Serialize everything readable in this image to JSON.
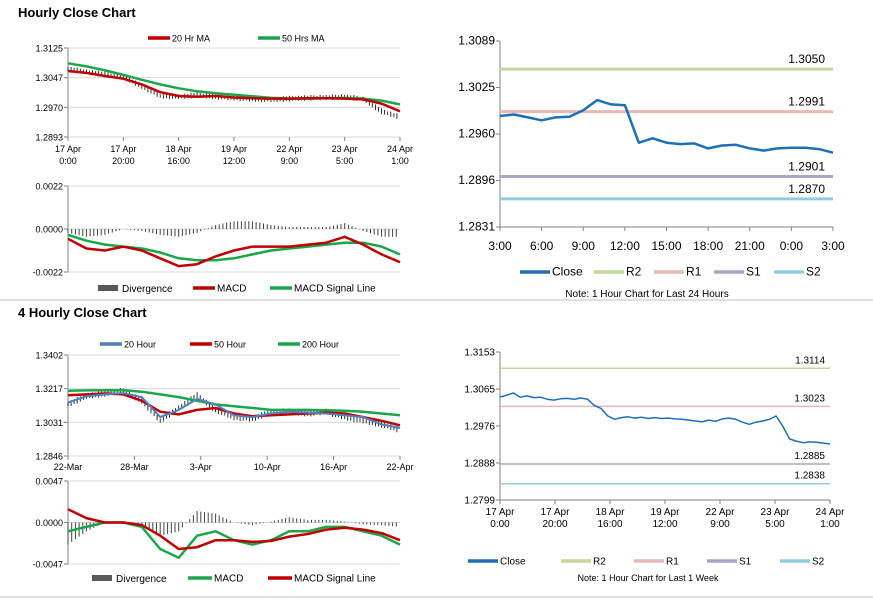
{
  "sections": {
    "hourly_title": "Hourly Close Chart",
    "four_hourly_title": "4 Hourly Close Chart"
  },
  "colors": {
    "close": "#1f6fb5",
    "red": "#c00000",
    "green": "#1aa64b",
    "blue": "#4f81bd",
    "r2": "#c4d79b",
    "r1": "#e6b9b8",
    "s1": "#b1a0c7",
    "s2": "#92cddc",
    "bars": "#404040",
    "axis": "#808080"
  },
  "chart_data": [
    {
      "id": "hourly_price",
      "type": "line",
      "legend": [
        "20 Hr MA",
        "50 Hrs MA"
      ],
      "yticks": [
        "1.3125",
        "1.3047",
        "1.2970",
        "1.2893"
      ],
      "ylim": [
        1.2893,
        1.3125
      ],
      "xticks": [
        [
          "17 Apr",
          "0:00"
        ],
        [
          "17 Apr",
          "20:00"
        ],
        [
          "18 Apr",
          "16:00"
        ],
        [
          "19 Apr",
          "12:00"
        ],
        [
          "22 Apr",
          "9:00"
        ],
        [
          "23 Apr",
          "5:00"
        ],
        [
          "24 Apr",
          "1:00"
        ]
      ],
      "series": [
        {
          "name": "20 Hr MA",
          "color": "#c00000",
          "values": [
            1.3065,
            1.306,
            1.3052,
            1.3045,
            1.303,
            1.301,
            1.3,
            1.2998,
            1.3,
            1.2996,
            1.2994,
            1.2993,
            1.2993,
            1.2994,
            1.2994,
            1.2993,
            1.2991,
            1.298,
            1.296
          ]
        },
        {
          "name": "50 Hrs MA",
          "color": "#1aa64b",
          "values": [
            1.3085,
            1.3077,
            1.3067,
            1.3055,
            1.3042,
            1.303,
            1.302,
            1.3012,
            1.3007,
            1.3003,
            1.2999,
            1.2995,
            1.2993,
            1.2993,
            1.2994,
            1.2995,
            1.2993,
            1.2988,
            1.2978
          ]
        },
        {
          "name": "Close",
          "color": "#000000",
          "values": [
            1.307,
            1.3063,
            1.3056,
            1.305,
            1.3025,
            1.3,
            1.2998,
            1.3002,
            1.2998,
            1.2995,
            1.2992,
            1.299,
            1.2993,
            1.2995,
            1.2996,
            1.2998,
            1.2992,
            1.296,
            1.2945
          ]
        }
      ]
    },
    {
      "id": "hourly_macd",
      "type": "line",
      "legend": [
        "Divergence",
        "MACD",
        "MACD Signal Line"
      ],
      "yticks": [
        "0.0022",
        "0.0000",
        "-0.0022"
      ],
      "ylim": [
        -0.0022,
        0.0022
      ],
      "series": [
        {
          "name": "MACD",
          "color": "#c00000",
          "values": [
            -0.0005,
            -0.001,
            -0.0011,
            -0.0009,
            -0.0011,
            -0.0015,
            -0.0019,
            -0.0018,
            -0.0014,
            -0.0011,
            -0.0009,
            -0.0009,
            -0.0009,
            -0.0008,
            -0.0007,
            -0.0004,
            -0.0008,
            -0.0013,
            -0.0017
          ]
        },
        {
          "name": "MACD Signal Line",
          "color": "#1aa64b",
          "values": [
            -0.0003,
            -0.0006,
            -0.0008,
            -0.0009,
            -0.001,
            -0.0012,
            -0.0015,
            -0.0016,
            -0.0016,
            -0.0015,
            -0.0013,
            -0.0011,
            -0.001,
            -0.0009,
            -0.0008,
            -0.0007,
            -0.0007,
            -0.0009,
            -0.0013
          ]
        },
        {
          "name": "Divergence",
          "color": "#404040",
          "values": [
            -0.0002,
            -0.0004,
            -0.0003,
            0.0,
            -0.0001,
            -0.0003,
            -0.0004,
            -0.0002,
            0.0002,
            0.0004,
            0.0004,
            0.0002,
            0.0001,
            0.0001,
            0.0001,
            0.0003,
            -0.0001,
            -0.0004,
            -0.0004
          ]
        }
      ]
    },
    {
      "id": "hourly_levels",
      "type": "line",
      "yticks": [
        "1.3089",
        "1.3025",
        "1.2960",
        "1.2896",
        "1.2831"
      ],
      "ylim": [
        1.2831,
        1.3089
      ],
      "xticks": [
        "3:00",
        "6:00",
        "9:00",
        "12:00",
        "15:00",
        "18:00",
        "21:00",
        "0:00",
        "3:00"
      ],
      "legend": [
        "Close",
        "R2",
        "R1",
        "S1",
        "S2"
      ],
      "note": "Note: 1 Hour Chart for Last 24 Hours",
      "levels": [
        {
          "name": "R2",
          "value": 1.305,
          "label": "1.3050",
          "color": "#c4d79b"
        },
        {
          "name": "R1",
          "value": 1.2991,
          "label": "1.2991",
          "color": "#e6b9b8"
        },
        {
          "name": "S1",
          "value": 1.2901,
          "label": "1.2901",
          "color": "#b1a0c7"
        },
        {
          "name": "S2",
          "value": 1.287,
          "label": "1.2870",
          "color": "#92cddc"
        }
      ],
      "series": [
        {
          "name": "Close",
          "color": "#1f6fb5",
          "values": [
            1.2985,
            1.2987,
            1.2983,
            1.2979,
            1.2983,
            1.2984,
            1.2993,
            1.3007,
            1.3001,
            1.3,
            1.2948,
            1.2954,
            1.2948,
            1.2946,
            1.2947,
            1.294,
            1.2944,
            1.2945,
            1.294,
            1.2937,
            1.294,
            1.2941,
            1.2941,
            1.2939,
            1.2934
          ]
        }
      ]
    },
    {
      "id": "four_hourly_price",
      "type": "line",
      "legend": [
        "20 Hour",
        "50 Hour",
        "200 Hour"
      ],
      "yticks": [
        "1.3402",
        "1.3217",
        "1.3031",
        "1.2846"
      ],
      "ylim": [
        1.2846,
        1.3402
      ],
      "xticks": [
        "22-Mar",
        "28-Mar",
        "3-Apr",
        "10-Apr",
        "16-Apr",
        "22-Apr"
      ],
      "series": [
        {
          "name": "20 Hour",
          "color": "#4f81bd",
          "values": [
            1.314,
            1.3175,
            1.3185,
            1.3192,
            1.317,
            1.306,
            1.31,
            1.316,
            1.313,
            1.307,
            1.306,
            1.308,
            1.309,
            1.3085,
            1.308,
            1.307,
            1.306,
            1.302,
            1.3
          ]
        },
        {
          "name": "50 Hour",
          "color": "#c00000",
          "values": [
            1.318,
            1.3185,
            1.319,
            1.3185,
            1.315,
            1.309,
            1.3075,
            1.31,
            1.311,
            1.308,
            1.3065,
            1.307,
            1.3075,
            1.308,
            1.3085,
            1.308,
            1.306,
            1.304,
            1.3015
          ]
        },
        {
          "name": "200 Hour",
          "color": "#1aa64b",
          "values": [
            1.3205,
            1.3207,
            1.3208,
            1.3208,
            1.32,
            1.3185,
            1.317,
            1.315,
            1.313,
            1.312,
            1.311,
            1.31,
            1.31,
            1.31,
            1.3098,
            1.3095,
            1.309,
            1.308,
            1.307
          ]
        },
        {
          "name": "Close",
          "color": "#000000",
          "values": [
            1.313,
            1.3175,
            1.319,
            1.3205,
            1.315,
            1.304,
            1.311,
            1.318,
            1.31,
            1.306,
            1.305,
            1.309,
            1.309,
            1.308,
            1.309,
            1.306,
            1.304,
            1.302,
            1.299
          ]
        }
      ]
    },
    {
      "id": "four_hourly_macd",
      "type": "line",
      "legend": [
        "Divergence",
        "MACD",
        "MACD Signal Line"
      ],
      "yticks": [
        "0.0047",
        "0.0000",
        "-0.0047"
      ],
      "ylim": [
        -0.0047,
        0.0047
      ],
      "series": [
        {
          "name": "MACD",
          "color": "#1aa64b",
          "values": [
            -0.001,
            -0.0005,
            0.0,
            0.0,
            -0.0005,
            -0.003,
            -0.004,
            -0.0015,
            -0.001,
            -0.002,
            -0.0025,
            -0.002,
            -0.001,
            -0.001,
            -0.0005,
            -0.0005,
            -0.001,
            -0.0015,
            -0.0025
          ]
        },
        {
          "name": "MACD Signal Line",
          "color": "#c00000",
          "values": [
            0.0015,
            0.0005,
            0.0,
            0.0,
            -0.0003,
            -0.0015,
            -0.003,
            -0.0028,
            -0.002,
            -0.002,
            -0.0022,
            -0.0021,
            -0.0016,
            -0.0013,
            -0.0008,
            -0.0006,
            -0.0008,
            -0.0012,
            -0.002
          ]
        },
        {
          "name": "Divergence",
          "color": "#404040",
          "values": [
            -0.0025,
            -0.001,
            0.0,
            0.0,
            -0.0002,
            -0.0015,
            -0.001,
            0.0013,
            0.001,
            0.0,
            -0.0003,
            0.0001,
            0.0006,
            0.0003,
            0.0003,
            0.0001,
            -0.0002,
            -0.0003,
            -0.0005
          ]
        }
      ]
    },
    {
      "id": "four_hourly_levels",
      "type": "line",
      "yticks": [
        "1.3153",
        "1.3065",
        "1.2976",
        "1.2888",
        "1.2799"
      ],
      "ylim": [
        1.2799,
        1.3153
      ],
      "xticks": [
        [
          "17 Apr",
          "0:00"
        ],
        [
          "17 Apr",
          "20:00"
        ],
        [
          "18 Apr",
          "16:00"
        ],
        [
          "19 Apr",
          "12:00"
        ],
        [
          "22 Apr",
          "9:00"
        ],
        [
          "23 Apr",
          "5:00"
        ],
        [
          "24 Apr",
          "1:00"
        ]
      ],
      "legend": [
        "Close",
        "R2",
        "R1",
        "S1",
        "S2"
      ],
      "note": "Note: 1 Hour Chart for Last 1 Week",
      "levels": [
        {
          "name": "R2",
          "value": 1.3114,
          "label": "1.3114",
          "color": "#c4d79b"
        },
        {
          "name": "R1",
          "value": 1.3023,
          "label": "1.3023",
          "color": "#e6b9b8"
        },
        {
          "name": "S1",
          "value": 1.2885,
          "label": "1.2885",
          "color": "#b1a0c7"
        },
        {
          "name": "S2",
          "value": 1.2838,
          "label": "1.2838",
          "color": "#92cddc"
        }
      ],
      "series": [
        {
          "name": "Close",
          "color": "#1f6fb5",
          "values": [
            1.3045,
            1.305,
            1.3055,
            1.3045,
            1.3048,
            1.3044,
            1.3045,
            1.304,
            1.3038,
            1.3041,
            1.3042,
            1.304,
            1.3043,
            1.304,
            1.3025,
            1.3018,
            1.3,
            1.2992,
            1.2996,
            1.2998,
            1.2995,
            1.2997,
            1.2994,
            1.2996,
            1.2994,
            1.2995,
            1.2993,
            1.2992,
            1.299,
            1.2988,
            1.2986,
            1.299,
            1.2987,
            1.2993,
            1.2995,
            1.2992,
            1.2985,
            1.298,
            1.2985,
            1.2988,
            1.2992,
            1.3,
            1.2975,
            1.2945,
            1.294,
            1.2936,
            1.2938,
            1.2937,
            1.2935,
            1.2933
          ]
        }
      ]
    }
  ]
}
